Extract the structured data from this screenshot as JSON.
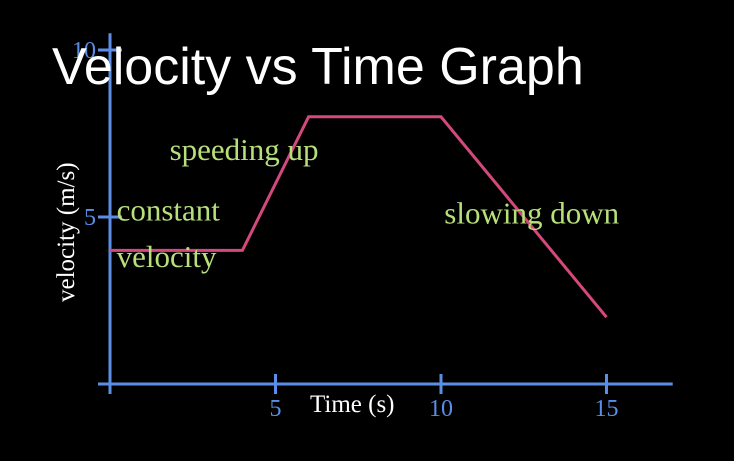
{
  "chart_data": {
    "type": "line",
    "title": "Velocity vs Time Graph",
    "xlabel": "Time (s)",
    "ylabel": "velocity (m/s)",
    "xlim": [
      0,
      17
    ],
    "ylim": [
      0,
      10.5
    ],
    "x_ticks": [
      5,
      10,
      15
    ],
    "y_ticks": [
      5,
      10
    ],
    "grid": false,
    "legend": "none",
    "series": [
      {
        "x": [
          0,
          4,
          6,
          10,
          15
        ],
        "y": [
          4,
          4,
          8,
          8,
          2
        ]
      }
    ],
    "annotations": [
      {
        "text": "constant",
        "x": 0.2,
        "y": 4.9
      },
      {
        "text": "velocity",
        "x": 0.2,
        "y": 3.5
      },
      {
        "text": "speeding up",
        "x": 1.8,
        "y": 6.7
      },
      {
        "text": "slowing down",
        "x": 10.1,
        "y": 4.8
      }
    ]
  },
  "colors": {
    "background": "#000000",
    "axis": "#5b8ee6",
    "line": "#d4487c",
    "annotation": "#b7e07a",
    "text": "#ffffff"
  }
}
